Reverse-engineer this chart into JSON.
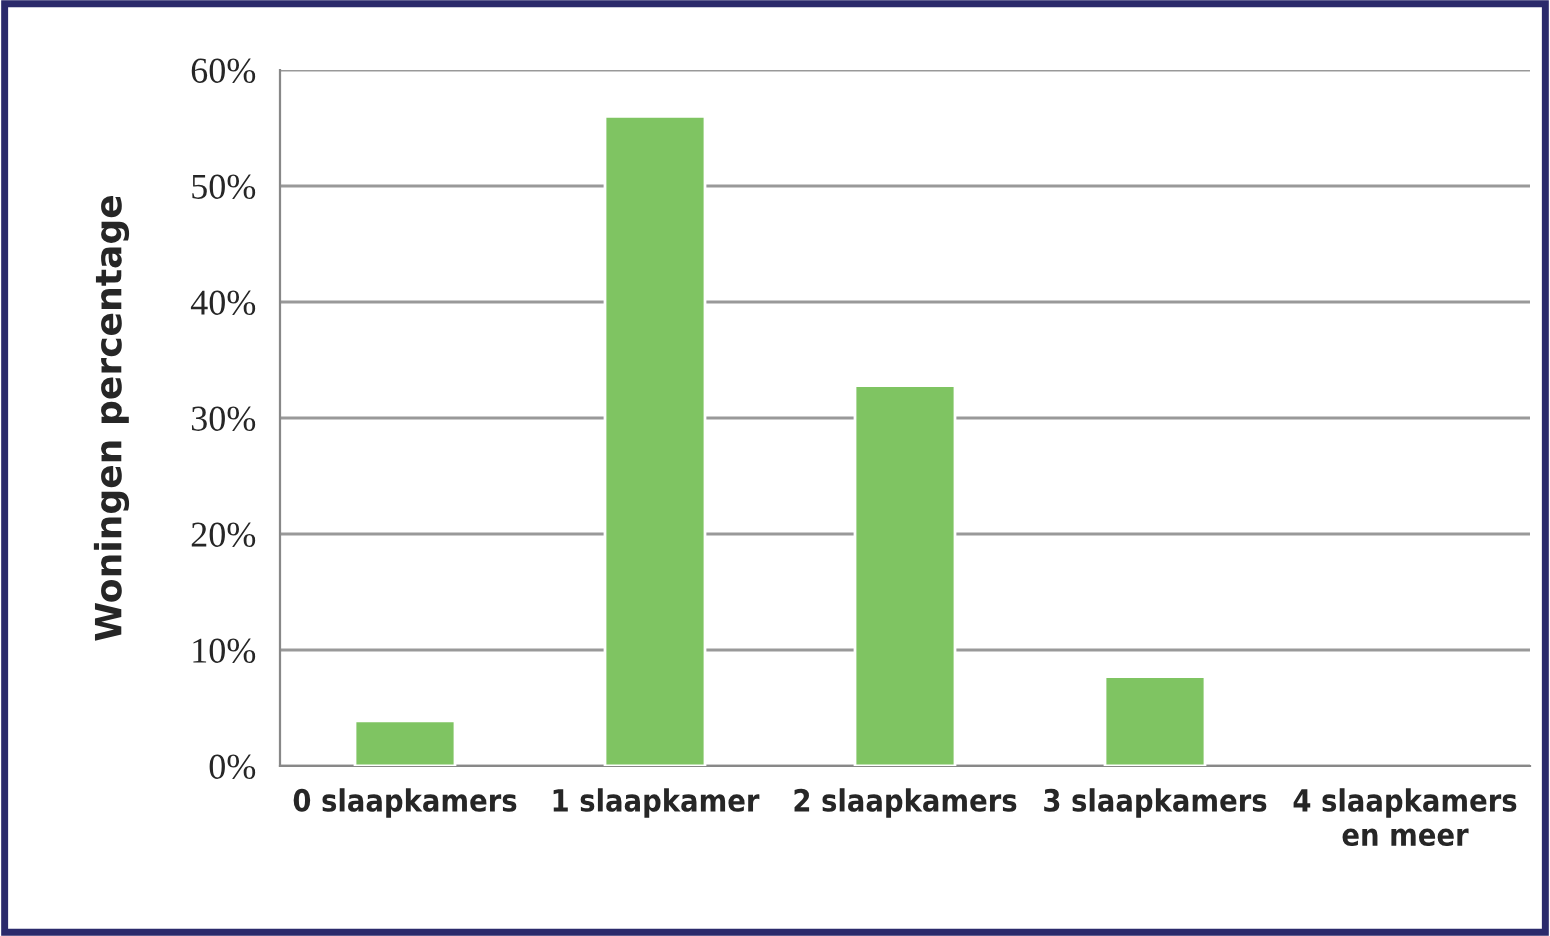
{
  "chart_data": {
    "type": "bar",
    "ylabel": "Woningen percentage",
    "categories": [
      "0 slaapkamers",
      "1 slaapkamer",
      "2 slaapkamers",
      "3 slaapkamers",
      "4 slaapkamers\nen meer"
    ],
    "values": [
      3.9,
      56,
      32.8,
      7.7,
      null
    ],
    "color": "#7fc462",
    "ylim": [
      0,
      60
    ],
    "yticks": [
      {
        "value": 0,
        "label": "0%"
      },
      {
        "value": 10,
        "label": "10%"
      },
      {
        "value": 20,
        "label": "20%"
      },
      {
        "value": 30,
        "label": "30%"
      },
      {
        "value": 40,
        "label": "40%"
      },
      {
        "value": 50,
        "label": "50%"
      },
      {
        "value": 60,
        "label": "60%"
      }
    ],
    "grid": "y"
  }
}
